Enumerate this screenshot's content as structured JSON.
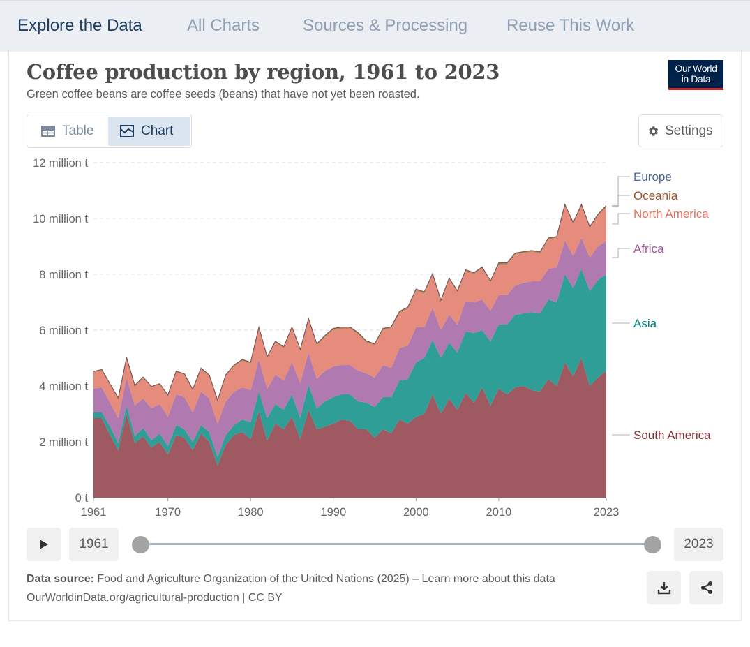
{
  "nav": {
    "tabs": [
      {
        "label": "Explore the Data",
        "active": true
      },
      {
        "label": "All Charts"
      },
      {
        "label": "Sources & Processing"
      },
      {
        "label": "Reuse This Work"
      }
    ]
  },
  "header": {
    "title": "Coffee production by region, 1961 to 2023",
    "subtitle": "Green coffee beans are coffee seeds (beans) that have not yet been roasted.",
    "logo_line1": "Our World",
    "logo_line2": "in Data"
  },
  "controls": {
    "table_label": "Table",
    "chart_label": "Chart",
    "settings_label": "Settings"
  },
  "timeline": {
    "start_year": "1961",
    "end_year": "2023",
    "range_start": 1961,
    "range_end": 2023
  },
  "footer": {
    "source_prefix": "Data source:",
    "source_text": "Food and Agriculture Organization of the United Nations (2025) –",
    "learn_more": "Learn more about this data",
    "url_text": "OurWorldinData.org/agricultural-production | CC BY"
  },
  "chart_data": {
    "type": "area",
    "stacked": true,
    "title": "Coffee production by region, 1961 to 2023",
    "ylim": [
      0,
      12
    ],
    "yunit": "million t",
    "grid": "horizontal dashed",
    "y_ticks": [
      "0 t",
      "2 million t",
      "4 million t",
      "6 million t",
      "8 million t",
      "10 million t",
      "12 million t"
    ],
    "x_ticks": [
      1961,
      1970,
      1980,
      1990,
      2000,
      2010,
      2023
    ],
    "legend_placement": "right",
    "x": [
      1961,
      1962,
      1963,
      1964,
      1965,
      1966,
      1967,
      1968,
      1969,
      1970,
      1971,
      1972,
      1973,
      1974,
      1975,
      1976,
      1977,
      1978,
      1979,
      1980,
      1981,
      1982,
      1983,
      1984,
      1985,
      1986,
      1987,
      1988,
      1989,
      1990,
      1991,
      1992,
      1993,
      1994,
      1995,
      1996,
      1997,
      1998,
      1999,
      2000,
      2001,
      2002,
      2003,
      2004,
      2005,
      2006,
      2007,
      2008,
      2009,
      2010,
      2011,
      2012,
      2013,
      2014,
      2015,
      2016,
      2017,
      2018,
      2019,
      2020,
      2021,
      2022,
      2023
    ],
    "series": [
      {
        "name": "South America",
        "color": "#9e5a60",
        "label_color": "#883039",
        "values": [
          2.85,
          2.85,
          2.25,
          1.7,
          3.0,
          1.95,
          2.2,
          1.8,
          2.0,
          1.55,
          2.25,
          2.15,
          1.7,
          2.3,
          2.0,
          1.15,
          1.9,
          2.25,
          2.35,
          2.1,
          3.1,
          2.05,
          2.65,
          2.45,
          2.9,
          2.1,
          3.15,
          2.45,
          2.55,
          2.65,
          2.8,
          2.75,
          2.45,
          2.45,
          2.15,
          2.45,
          2.3,
          2.8,
          2.65,
          2.9,
          3.0,
          3.7,
          3.0,
          3.55,
          3.15,
          3.75,
          3.4,
          3.95,
          3.3,
          3.9,
          3.7,
          3.95,
          4.0,
          3.85,
          3.8,
          4.25,
          4.0,
          4.85,
          4.35,
          5.0,
          4.0,
          4.3,
          4.55
        ]
      },
      {
        "name": "Asia",
        "color": "#2e9e97",
        "label_color": "#00847e",
        "values": [
          0.2,
          0.2,
          0.3,
          0.25,
          0.3,
          0.25,
          0.3,
          0.25,
          0.3,
          0.3,
          0.35,
          0.3,
          0.3,
          0.3,
          0.35,
          0.3,
          0.35,
          0.35,
          0.45,
          0.6,
          0.7,
          0.8,
          0.7,
          0.7,
          0.8,
          0.75,
          0.9,
          0.75,
          0.9,
          0.95,
          0.9,
          0.95,
          1.0,
          0.95,
          1.1,
          1.15,
          1.3,
          1.4,
          1.6,
          1.95,
          2.0,
          1.95,
          2.0,
          2.0,
          2.05,
          2.2,
          2.5,
          2.05,
          2.3,
          2.3,
          2.5,
          2.6,
          2.6,
          2.8,
          2.8,
          2.85,
          3.0,
          3.15,
          3.15,
          3.2,
          3.4,
          3.5,
          3.45
        ]
      },
      {
        "name": "Africa",
        "color": "#b07ab1",
        "label_color": "#a2559c",
        "values": [
          0.85,
          0.9,
          0.85,
          0.9,
          1.0,
          1.1,
          1.05,
          1.15,
          1.05,
          1.05,
          1.1,
          1.15,
          1.05,
          1.2,
          1.2,
          1.2,
          1.2,
          1.2,
          1.15,
          1.15,
          1.15,
          1.05,
          1.05,
          1.05,
          1.15,
          1.25,
          1.15,
          1.05,
          1.1,
          1.1,
          1.05,
          1.05,
          1.1,
          1.05,
          1.05,
          1.15,
          1.05,
          1.15,
          1.2,
          1.25,
          1.1,
          1.15,
          1.0,
          1.0,
          1.0,
          1.1,
          1.1,
          1.1,
          1.1,
          1.05,
          1.05,
          1.05,
          1.1,
          1.1,
          1.15,
          1.1,
          1.25,
          1.2,
          1.15,
          1.1,
          1.2,
          1.2,
          1.2
        ]
      },
      {
        "name": "North America",
        "color": "#e58c7c",
        "label_color": "#e56e5a",
        "values": [
          0.6,
          0.62,
          0.65,
          0.7,
          0.7,
          0.7,
          0.75,
          0.75,
          0.7,
          0.75,
          0.8,
          0.8,
          0.8,
          0.8,
          0.8,
          0.8,
          0.9,
          0.9,
          0.95,
          0.95,
          1.1,
          1.1,
          1.15,
          1.15,
          1.2,
          1.15,
          1.15,
          1.2,
          1.2,
          1.3,
          1.3,
          1.3,
          1.3,
          1.1,
          1.15,
          1.25,
          1.4,
          1.25,
          1.3,
          1.3,
          1.2,
          1.15,
          1.0,
          1.25,
          1.15,
          1.05,
          1.0,
          1.1,
          1.0,
          1.1,
          1.1,
          1.1,
          1.05,
          1.05,
          1.0,
          1.05,
          1.05,
          1.25,
          1.15,
          1.15,
          1.05,
          1.1,
          1.2
        ]
      },
      {
        "name": "Oceania",
        "color": "#bd8a5e",
        "label_color": "#9a5129",
        "values": [
          0.02,
          0.02,
          0.02,
          0.02,
          0.02,
          0.02,
          0.02,
          0.03,
          0.03,
          0.03,
          0.03,
          0.03,
          0.03,
          0.04,
          0.04,
          0.04,
          0.05,
          0.05,
          0.05,
          0.05,
          0.05,
          0.05,
          0.05,
          0.05,
          0.06,
          0.06,
          0.06,
          0.06,
          0.06,
          0.06,
          0.06,
          0.06,
          0.06,
          0.06,
          0.06,
          0.06,
          0.07,
          0.07,
          0.07,
          0.07,
          0.07,
          0.07,
          0.07,
          0.06,
          0.06,
          0.06,
          0.06,
          0.06,
          0.06,
          0.06,
          0.06,
          0.06,
          0.06,
          0.05,
          0.05,
          0.05,
          0.05,
          0.05,
          0.05,
          0.05,
          0.05,
          0.05,
          0.05
        ]
      },
      {
        "name": "Europe",
        "color": "#5b7fae",
        "label_color": "#4c6a9c",
        "values": [
          0,
          0,
          0,
          0,
          0,
          0,
          0,
          0,
          0,
          0,
          0,
          0,
          0,
          0,
          0,
          0,
          0,
          0,
          0,
          0,
          0,
          0,
          0,
          0,
          0,
          0,
          0,
          0,
          0,
          0,
          0,
          0,
          0,
          0,
          0,
          0,
          0,
          0,
          0,
          0,
          0,
          0,
          0,
          0,
          0,
          0,
          0,
          0,
          0,
          0,
          0,
          0,
          0,
          0,
          0,
          0,
          0,
          0,
          0,
          0,
          0,
          0,
          0.01
        ]
      }
    ]
  }
}
